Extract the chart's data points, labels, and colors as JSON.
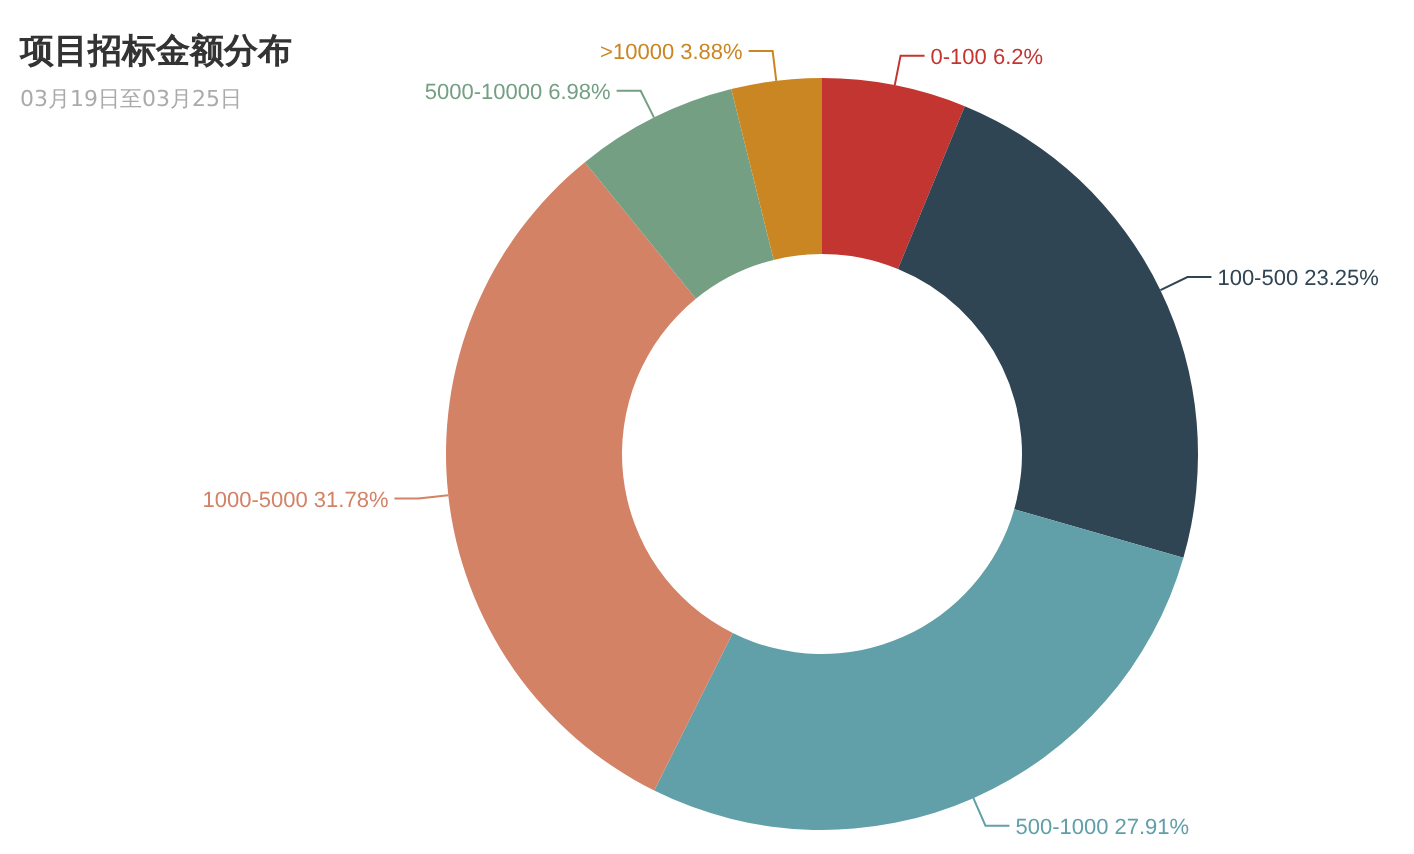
{
  "chart_data": {
    "type": "donut",
    "title": "项目招标金额分布",
    "subtitle": "03月19日至03月25日",
    "categories": [
      "0-100",
      "100-500",
      "500-1000",
      "1000-5000",
      "5000-10000",
      ">10000"
    ],
    "values": [
      6.2,
      23.25,
      27.91,
      31.78,
      6.98,
      3.88
    ],
    "value_labels": [
      "6.2%",
      "23.25%",
      "27.91%",
      "31.78%",
      "6.98%",
      "3.88%"
    ],
    "colors": [
      "#c23531",
      "#2f4554",
      "#61a0a8",
      "#d48265",
      "#749f83",
      "#ca8622"
    ]
  }
}
